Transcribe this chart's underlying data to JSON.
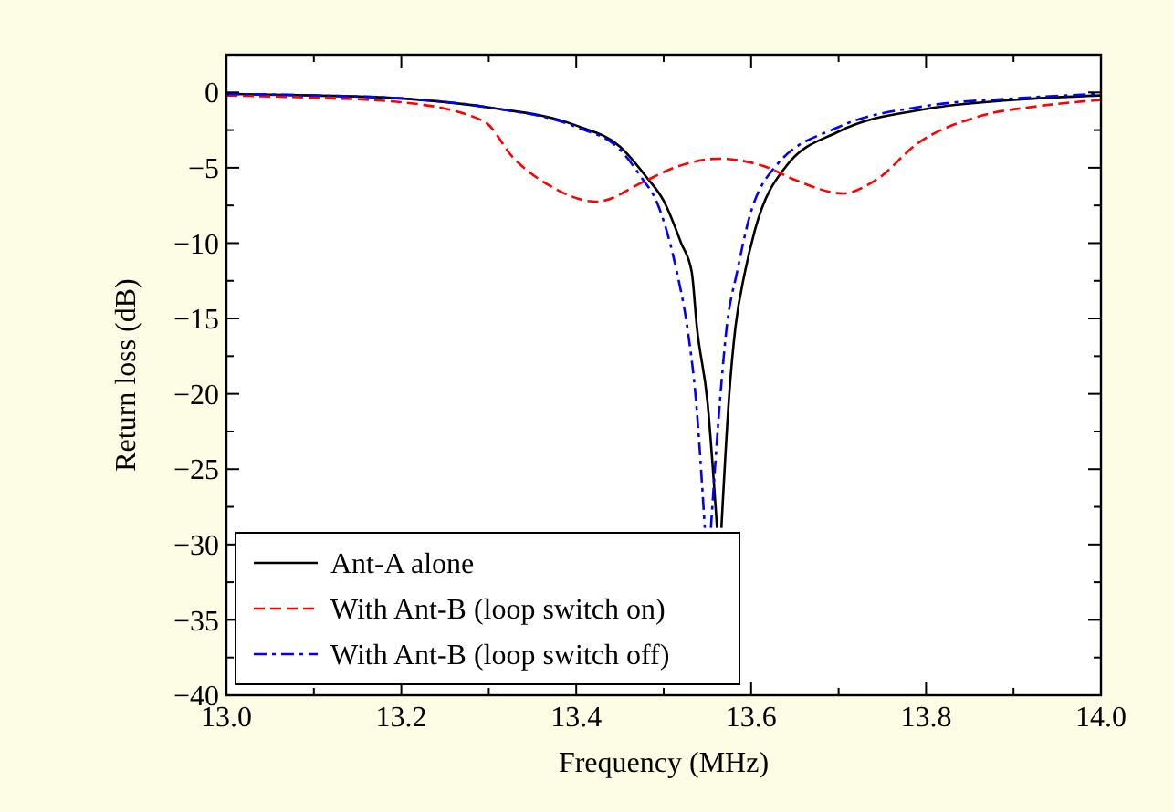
{
  "chart_data": {
    "type": "line",
    "xlabel": "Frequency (MHz)",
    "ylabel": "Return loss (dB)",
    "xlim": [
      13.0,
      14.0
    ],
    "xticks": [
      {
        "value": 13.0,
        "label": "13.0"
      },
      {
        "value": 13.1,
        "label": null
      },
      {
        "value": 13.2,
        "label": "13.2"
      },
      {
        "value": 13.3,
        "label": null
      },
      {
        "value": 13.4,
        "label": "13.4"
      },
      {
        "value": 13.5,
        "label": null
      },
      {
        "value": 13.6,
        "label": "13.6"
      },
      {
        "value": 13.7,
        "label": null
      },
      {
        "value": 13.8,
        "label": "13.8"
      },
      {
        "value": 13.9,
        "label": null
      },
      {
        "value": 14.0,
        "label": "14.0"
      }
    ],
    "ylim": [
      -40,
      2.5
    ],
    "yticks": [
      {
        "value": -40,
        "label": "−40"
      },
      {
        "value": -37.5,
        "label": null
      },
      {
        "value": -35,
        "label": "−35"
      },
      {
        "value": -32.5,
        "label": null
      },
      {
        "value": -30,
        "label": "−30"
      },
      {
        "value": -27.5,
        "label": null
      },
      {
        "value": -25,
        "label": "−25"
      },
      {
        "value": -22.5,
        "label": null
      },
      {
        "value": -20,
        "label": "−20"
      },
      {
        "value": -17.5,
        "label": null
      },
      {
        "value": -15,
        "label": "−15"
      },
      {
        "value": -12.5,
        "label": null
      },
      {
        "value": -10,
        "label": "−10"
      },
      {
        "value": -7.5,
        "label": null
      },
      {
        "value": -5,
        "label": "−5"
      },
      {
        "value": -2.5,
        "label": null
      },
      {
        "value": 0,
        "label": "0"
      }
    ],
    "grid": false,
    "legend": "bottom left",
    "marker": "none",
    "series": [
      {
        "name": "Ant-A alone",
        "color": "#000000",
        "line_style": "solid",
        "x": [
          13.0,
          13.1,
          13.2,
          13.3,
          13.4,
          13.45,
          13.48,
          13.5,
          13.52,
          13.532,
          13.538,
          13.55,
          13.561,
          13.5635,
          13.566,
          13.575,
          13.582,
          13.593,
          13.605,
          13.64,
          13.7,
          13.8,
          13.9,
          14.0
        ],
        "values": [
          -0.1,
          -0.2,
          -0.4,
          -1.0,
          -2.2,
          -3.6,
          -5.6,
          -7.2,
          -10.0,
          -11.9,
          -15.6,
          -20.5,
          -28.9,
          null,
          -28.9,
          -20.0,
          -15.6,
          -11.9,
          -9.0,
          -4.9,
          -2.6,
          -1.1,
          -0.5,
          -0.2
        ]
      },
      {
        "name": "With Ant-B (loop switch on)",
        "color": "#ff0000",
        "line_style": "dashed",
        "x": [
          13.0,
          13.1,
          13.2,
          13.294,
          13.329,
          13.37,
          13.423,
          13.478,
          13.512,
          13.562,
          13.615,
          13.65,
          13.705,
          13.743,
          13.79,
          13.86,
          13.93,
          14.0
        ],
        "values": [
          -0.2,
          -0.35,
          -0.65,
          -1.9,
          -4.4,
          -6.2,
          -7.25,
          -5.9,
          -5.0,
          -4.4,
          -4.9,
          -5.8,
          -6.7,
          -5.8,
          -3.4,
          -1.6,
          -0.9,
          -0.5
        ]
      },
      {
        "name": "With Ant-B (loop switch off)",
        "color": "#0000ff",
        "line_style": "dashdot",
        "x": [
          13.0,
          13.1,
          13.2,
          13.3,
          13.4,
          13.45,
          13.474,
          13.493,
          13.515,
          13.527,
          13.537,
          13.547,
          13.5505,
          13.554,
          13.565,
          13.572,
          13.584,
          13.597,
          13.628,
          13.7,
          13.8,
          13.9,
          14.0
        ],
        "values": [
          -0.1,
          -0.2,
          -0.4,
          -1.0,
          -2.3,
          -3.8,
          -5.6,
          -7.4,
          -11.9,
          -15.6,
          -20.5,
          -28.9,
          null,
          -28.9,
          -20.0,
          -15.6,
          -11.9,
          -8.5,
          -4.9,
          -2.3,
          -0.9,
          -0.4,
          -0.1
        ]
      }
    ]
  }
}
